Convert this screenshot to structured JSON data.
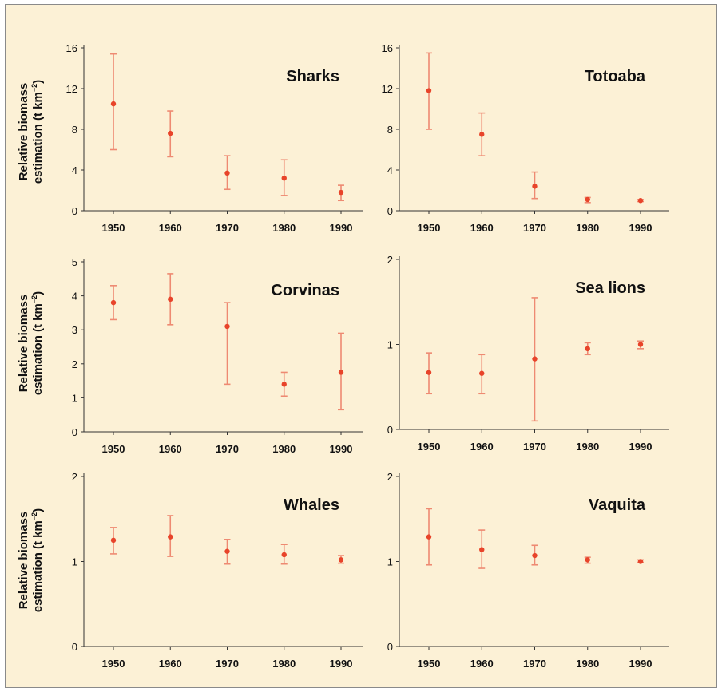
{
  "y_axis_label": {
    "line1": "Relative biomass",
    "line2_prefix": "estimation (t km",
    "line2_exp": "−2",
    "line2_suffix": ")"
  },
  "colors": {
    "marker": "#e8442a",
    "errorbar": "#ee8a72",
    "axis": "#333333",
    "background": "#fcf1d6",
    "border": "#8a8a8a"
  },
  "chart_data": [
    {
      "type": "scatter",
      "title": "Sharks",
      "ylim": [
        0,
        16
      ],
      "yticks": [
        0,
        4,
        8,
        12,
        16
      ],
      "x": [
        1950,
        1960,
        1970,
        1980,
        1990
      ],
      "y": [
        10.5,
        7.6,
        3.7,
        3.2,
        1.8
      ],
      "err_low": [
        6.0,
        5.3,
        2.1,
        1.5,
        1.0
      ],
      "err_high": [
        15.4,
        9.8,
        5.4,
        5.0,
        2.5
      ]
    },
    {
      "type": "scatter",
      "title": "Totoaba",
      "ylim": [
        0,
        16
      ],
      "yticks": [
        0,
        4,
        8,
        12,
        16
      ],
      "x": [
        1950,
        1960,
        1970,
        1980,
        1990
      ],
      "y": [
        11.8,
        7.5,
        2.4,
        1.1,
        1.0
      ],
      "err_low": [
        8.0,
        5.4,
        1.2,
        0.8,
        0.9
      ],
      "err_high": [
        15.5,
        9.6,
        3.8,
        1.3,
        1.1
      ]
    },
    {
      "type": "scatter",
      "title": "Corvinas",
      "ylim": [
        0,
        5
      ],
      "yticks": [
        0,
        1,
        2,
        3,
        4,
        5
      ],
      "x": [
        1950,
        1960,
        1970,
        1980,
        1990
      ],
      "y": [
        3.8,
        3.9,
        3.1,
        1.4,
        1.75
      ],
      "err_low": [
        3.3,
        3.15,
        1.4,
        1.05,
        0.65
      ],
      "err_high": [
        4.3,
        4.65,
        3.8,
        1.75,
        2.9
      ]
    },
    {
      "type": "scatter",
      "title": "Sea lions",
      "ylim": [
        0,
        2
      ],
      "yticks": [
        0,
        1,
        2
      ],
      "x": [
        1950,
        1960,
        1970,
        1980,
        1990
      ],
      "y": [
        0.67,
        0.66,
        0.83,
        0.95,
        1.0
      ],
      "err_low": [
        0.42,
        0.42,
        0.1,
        0.88,
        0.95
      ],
      "err_high": [
        0.9,
        0.88,
        1.55,
        1.02,
        1.04
      ]
    },
    {
      "type": "scatter",
      "title": "Whales",
      "ylim": [
        0,
        2
      ],
      "yticks": [
        0,
        1,
        2
      ],
      "x": [
        1950,
        1960,
        1970,
        1980,
        1990
      ],
      "y": [
        1.25,
        1.29,
        1.12,
        1.08,
        1.02
      ],
      "err_low": [
        1.09,
        1.06,
        0.97,
        0.97,
        0.98
      ],
      "err_high": [
        1.4,
        1.54,
        1.26,
        1.2,
        1.07
      ]
    },
    {
      "type": "scatter",
      "title": "Vaquita",
      "ylim": [
        0,
        2
      ],
      "yticks": [
        0,
        1,
        2
      ],
      "x": [
        1950,
        1960,
        1970,
        1980,
        1990
      ],
      "y": [
        1.29,
        1.14,
        1.07,
        1.02,
        1.0
      ],
      "err_low": [
        0.96,
        0.92,
        0.96,
        0.98,
        0.99
      ],
      "err_high": [
        1.62,
        1.37,
        1.19,
        1.05,
        1.02
      ]
    }
  ]
}
